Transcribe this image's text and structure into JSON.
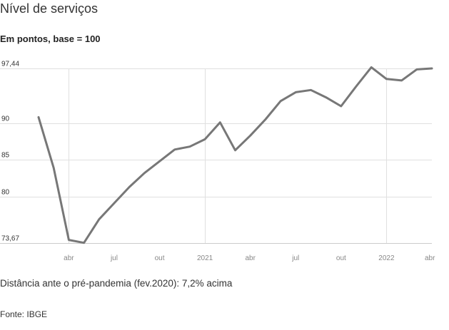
{
  "title": "Nível de serviços",
  "subtitle": "Em pontos, base = 100",
  "note": "Distância ante o pré-pandemia (fev.2020): 7,2% acima",
  "source": "Fonte: IBGE",
  "colors": {
    "line": "#777777",
    "grid": "#e0e0e0",
    "axis": "#cccccc"
  },
  "chart_data": {
    "type": "line",
    "title": "Nível de serviços",
    "xlabel": "",
    "ylabel": "Em pontos, base = 100",
    "ylim": [
      73.67,
      97.44
    ],
    "grid": true,
    "y_ticks": [
      {
        "value": 97.44,
        "label": "97,44"
      },
      {
        "value": 90,
        "label": "90"
      },
      {
        "value": 85,
        "label": "85"
      },
      {
        "value": 80,
        "label": "80"
      },
      {
        "value": 73.67,
        "label": "73,67"
      }
    ],
    "x_ticks": [
      {
        "date": "2020-04",
        "label": "abr"
      },
      {
        "date": "2020-07",
        "label": "jul"
      },
      {
        "date": "2020-10",
        "label": "out"
      },
      {
        "date": "2021-01",
        "label": "2021"
      },
      {
        "date": "2021-04",
        "label": "abr"
      },
      {
        "date": "2021-07",
        "label": "jul"
      },
      {
        "date": "2021-10",
        "label": "out"
      },
      {
        "date": "2022-01",
        "label": "2022"
      },
      {
        "date": "2022-04",
        "label": "abr"
      }
    ],
    "x_range": [
      "2020-02",
      "2022-04"
    ],
    "series": [
      {
        "x": [
          "2020-02",
          "2020-03",
          "2020-04",
          "2020-05",
          "2020-06",
          "2020-07",
          "2020-08",
          "2020-09",
          "2020-10",
          "2020-11",
          "2020-12",
          "2021-01",
          "2021-02",
          "2021-03",
          "2021-04",
          "2021-05",
          "2021-06",
          "2021-07",
          "2021-08",
          "2021-09",
          "2021-10",
          "2021-11",
          "2021-12",
          "2022-01",
          "2022-02",
          "2022-03",
          "2022-04"
        ],
        "values": [
          90.8,
          83.9,
          74.1,
          73.7,
          76.9,
          79.1,
          81.3,
          83.2,
          84.8,
          86.4,
          86.8,
          87.8,
          90.1,
          86.3,
          88.3,
          90.5,
          93.0,
          94.2,
          94.5,
          93.5,
          92.3,
          95.0,
          97.6,
          96.0,
          95.8,
          97.3,
          97.44
        ]
      }
    ]
  }
}
